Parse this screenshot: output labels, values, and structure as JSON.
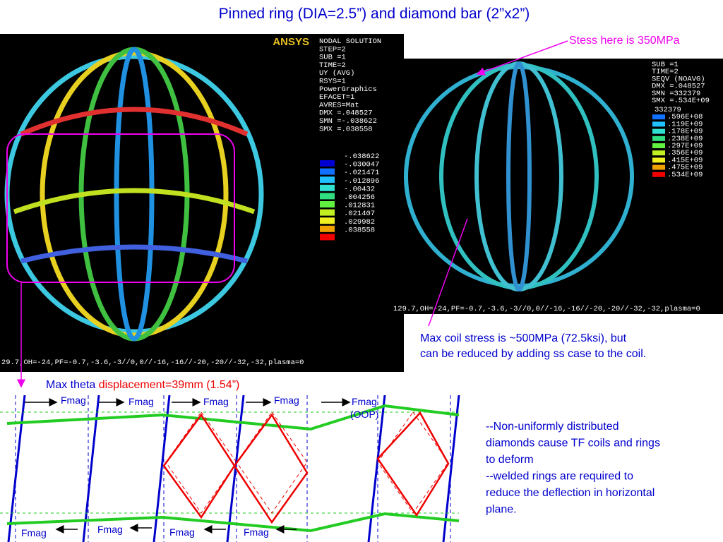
{
  "title": "Pinned ring (DIA=2.5”) and diamond bar (2”x2”)",
  "left_panel": {
    "logo": "ANSYS",
    "info": [
      "NODAL SOLUTION",
      "STEP=2",
      "SUB =1",
      "TIME=2",
      "UY         (AVG)",
      "RSYS=1",
      "PowerGraphics",
      "EFACET=1",
      "AVRES=Mat",
      "DMX =.048527",
      "SMN =-.038622",
      "SMX =.038558"
    ],
    "legend": [
      "-.038622",
      "-.030047",
      "-.021471",
      "-.012896",
      "-.00432",
      ".004256",
      ".012831",
      ".021407",
      ".029982",
      ".038558"
    ],
    "footer": "29.7,OH=-24,PF=-0.7,-3.6,-3//0,0//-16,-16//-20,-20//-32,-32,plasma=0"
  },
  "right_panel": {
    "info": [
      "SUB =1",
      "TIME=2",
      "SEQV      (NOAVG)",
      "DMX =.048527",
      "SMN =332379",
      "SMX =.534E+09"
    ],
    "legend": [
      "332379",
      ".596E+08",
      ".119E+09",
      ".178E+09",
      ".238E+09",
      ".297E+09",
      ".356E+09",
      ".415E+09",
      ".475E+09",
      ".534E+09"
    ],
    "footer": "129.7,OH=-24,PF=-0.7,-3.6,-3//0,0//-16,-16//-20,-20//-32,-32,plasma=0"
  },
  "annotations": {
    "stress_top": "Stess here is 350MPa",
    "max_coil": [
      "Max coil stress is ~500MPa (72.5ksi), but",
      "can be reduced by adding ss case to the coil."
    ],
    "theta_prefix": "Max theta",
    "theta_value": "displacement=39mm (1.54”)"
  },
  "diagram": {
    "top_labels": [
      "Fmag",
      "Fmag",
      "Fmag",
      "Fmag",
      "Fmag"
    ],
    "oop": "(OOP)",
    "bottom_labels": [
      "Fmag",
      "Fmag",
      "Fmag",
      "Fmag"
    ]
  },
  "notes": [
    "--Non-uniformly distributed",
    "diamonds cause TF coils and rings",
    "to deform",
    "--welded rings are required to",
    "reduce the deflection in horizontal",
    "plane."
  ]
}
